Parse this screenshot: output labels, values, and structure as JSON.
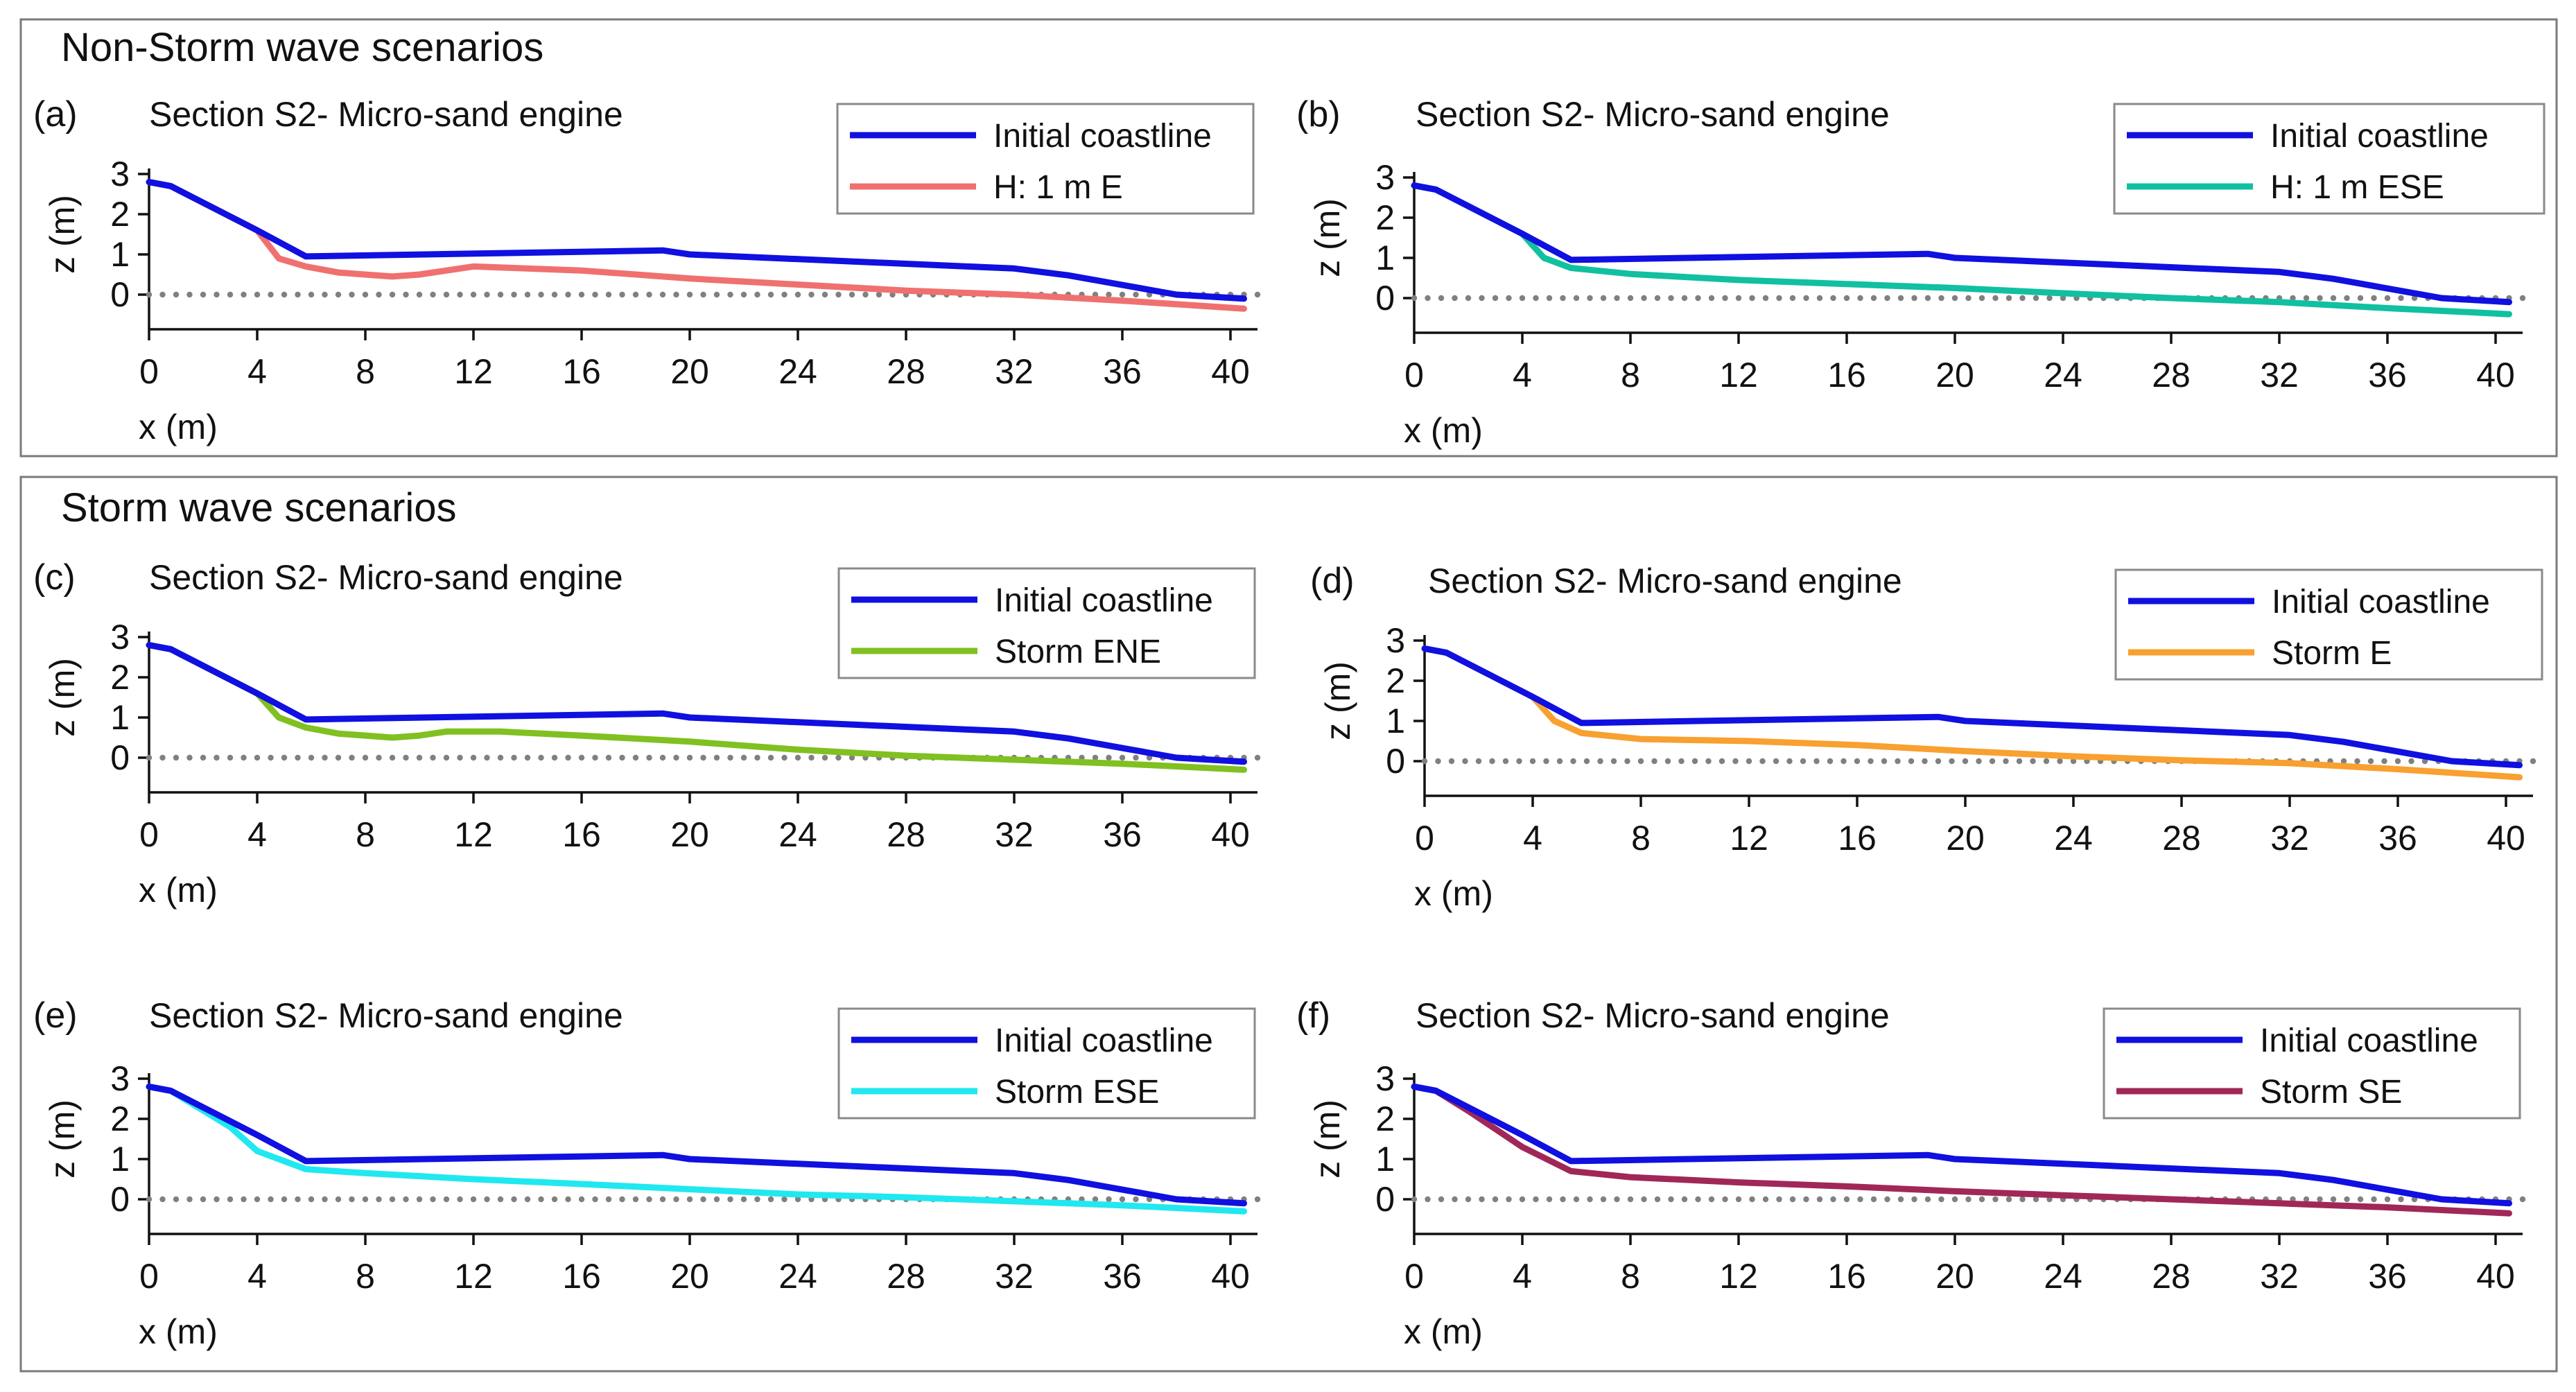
{
  "groups": [
    {
      "id": "non_storm",
      "title": "Non-Storm wave scenarios"
    },
    {
      "id": "storm",
      "title": "Storm wave scenarios"
    }
  ],
  "colors": {
    "initial": "#1010e0",
    "zero_marker": "#808080"
  },
  "chart_data": [
    {
      "type": "line",
      "group": "non_storm",
      "label": "(a)",
      "title": "Section S2- Micro-sand engine",
      "xlabel": "x (m)",
      "ylabel": "z (m)",
      "xlim": [
        0,
        41
      ],
      "ylim": [
        -0.8,
        3
      ],
      "xticks": [
        0,
        4,
        8,
        12,
        16,
        20,
        24,
        28,
        32,
        36,
        40
      ],
      "yticks": [
        0,
        1,
        2,
        3
      ],
      "series": [
        {
          "name": "Initial coastline",
          "color": "#1010e0",
          "x": [
            0,
            0.8,
            4,
            5.8,
            19,
            20,
            32,
            34,
            38,
            40.5
          ],
          "y": [
            2.8,
            2.7,
            1.6,
            0.95,
            1.1,
            1.0,
            0.65,
            0.48,
            0.0,
            -0.1
          ]
        },
        {
          "name": "H: 1 m E",
          "color": "#f07070",
          "x": [
            0,
            0.8,
            4,
            4.8,
            5.8,
            7,
            9,
            10,
            12,
            16,
            20,
            24,
            28,
            32,
            36,
            40.5
          ],
          "y": [
            2.8,
            2.7,
            1.6,
            0.9,
            0.7,
            0.55,
            0.45,
            0.5,
            0.7,
            0.6,
            0.4,
            0.25,
            0.1,
            0.0,
            -0.15,
            -0.35
          ]
        }
      ]
    },
    {
      "type": "line",
      "group": "non_storm",
      "label": "(b)",
      "title": "Section S2- Micro-sand engine",
      "xlabel": "x (m)",
      "ylabel": "z (m)",
      "xlim": [
        0,
        41
      ],
      "ylim": [
        -0.8,
        3
      ],
      "xticks": [
        0,
        4,
        8,
        12,
        16,
        20,
        24,
        28,
        32,
        36,
        40
      ],
      "yticks": [
        0,
        1,
        2,
        3
      ],
      "series": [
        {
          "name": "Initial coastline",
          "color": "#1010e0",
          "x": [
            0,
            0.8,
            4,
            5.8,
            19,
            20,
            32,
            34,
            38,
            40.5
          ],
          "y": [
            2.8,
            2.7,
            1.6,
            0.95,
            1.1,
            1.0,
            0.65,
            0.48,
            0.0,
            -0.1
          ]
        },
        {
          "name": "H: 1 m ESE",
          "color": "#10c0a0",
          "x": [
            0,
            0.8,
            4,
            4.8,
            5.8,
            8,
            12,
            16,
            20,
            24,
            28,
            32,
            36,
            40.5
          ],
          "y": [
            2.8,
            2.7,
            1.6,
            1.0,
            0.75,
            0.6,
            0.45,
            0.35,
            0.25,
            0.12,
            0.0,
            -0.1,
            -0.25,
            -0.4
          ]
        }
      ]
    },
    {
      "type": "line",
      "group": "storm",
      "label": "(c)",
      "title": "Section S2- Micro-sand engine",
      "xlabel": "x (m)",
      "ylabel": "z (m)",
      "xlim": [
        0,
        41
      ],
      "ylim": [
        -0.8,
        3
      ],
      "xticks": [
        0,
        4,
        8,
        12,
        16,
        20,
        24,
        28,
        32,
        36,
        40
      ],
      "yticks": [
        0,
        1,
        2,
        3
      ],
      "series": [
        {
          "name": "Initial coastline",
          "color": "#1010e0",
          "x": [
            0,
            0.8,
            4,
            5.8,
            19,
            20,
            32,
            34,
            38,
            40.5
          ],
          "y": [
            2.8,
            2.7,
            1.6,
            0.95,
            1.1,
            1.0,
            0.65,
            0.48,
            0.0,
            -0.1
          ]
        },
        {
          "name": "Storm ENE",
          "color": "#80c020",
          "x": [
            0,
            0.8,
            4,
            4.8,
            5.8,
            7,
            9,
            10,
            11,
            13,
            16,
            20,
            24,
            28,
            32,
            36,
            40.5
          ],
          "y": [
            2.8,
            2.7,
            1.6,
            1.0,
            0.75,
            0.6,
            0.5,
            0.55,
            0.65,
            0.65,
            0.55,
            0.4,
            0.2,
            0.05,
            -0.05,
            -0.15,
            -0.3
          ]
        }
      ]
    },
    {
      "type": "line",
      "group": "storm",
      "label": "(d)",
      "title": "Section S2- Micro-sand engine",
      "xlabel": "x (m)",
      "ylabel": "z (m)",
      "xlim": [
        0,
        41
      ],
      "ylim": [
        -0.8,
        3
      ],
      "xticks": [
        0,
        4,
        8,
        12,
        16,
        20,
        24,
        28,
        32,
        36,
        40
      ],
      "yticks": [
        0,
        1,
        2,
        3
      ],
      "series": [
        {
          "name": "Initial coastline",
          "color": "#1010e0",
          "x": [
            0,
            0.8,
            4,
            5.8,
            19,
            20,
            32,
            34,
            38,
            40.5
          ],
          "y": [
            2.8,
            2.7,
            1.6,
            0.95,
            1.1,
            1.0,
            0.65,
            0.48,
            0.0,
            -0.1
          ]
        },
        {
          "name": "Storm E",
          "color": "#f8a030",
          "x": [
            0,
            0.8,
            4,
            4.8,
            5.8,
            8,
            12,
            16,
            20,
            24,
            28,
            32,
            36,
            40.5
          ],
          "y": [
            2.8,
            2.7,
            1.6,
            1.0,
            0.7,
            0.55,
            0.5,
            0.4,
            0.25,
            0.12,
            0.02,
            -0.05,
            -0.2,
            -0.4
          ]
        }
      ]
    },
    {
      "type": "line",
      "group": "storm",
      "label": "(e)",
      "title": "Section S2- Micro-sand engine",
      "xlabel": "x (m)",
      "ylabel": "z (m)",
      "xlim": [
        0,
        41
      ],
      "ylim": [
        -0.8,
        3
      ],
      "xticks": [
        0,
        4,
        8,
        12,
        16,
        20,
        24,
        28,
        32,
        36,
        40
      ],
      "yticks": [
        0,
        1,
        2,
        3
      ],
      "series": [
        {
          "name": "Initial coastline",
          "color": "#1010e0",
          "x": [
            0,
            0.8,
            4,
            5.8,
            19,
            20,
            32,
            34,
            38,
            40.5
          ],
          "y": [
            2.8,
            2.7,
            1.6,
            0.95,
            1.1,
            1.0,
            0.65,
            0.48,
            0.0,
            -0.1
          ]
        },
        {
          "name": "Storm ESE",
          "color": "#20e8f0",
          "x": [
            0,
            0.8,
            3,
            4,
            5.8,
            8,
            12,
            16,
            20,
            24,
            28,
            32,
            36,
            40.5
          ],
          "y": [
            2.8,
            2.7,
            1.8,
            1.2,
            0.75,
            0.65,
            0.5,
            0.38,
            0.25,
            0.12,
            0.05,
            -0.05,
            -0.15,
            -0.3
          ]
        }
      ]
    },
    {
      "type": "line",
      "group": "storm",
      "label": "(f)",
      "title": "Section S2- Micro-sand engine",
      "xlabel": "x (m)",
      "ylabel": "z (m)",
      "xlim": [
        0,
        41
      ],
      "ylim": [
        -0.8,
        3
      ],
      "xticks": [
        0,
        4,
        8,
        12,
        16,
        20,
        24,
        28,
        32,
        36,
        40
      ],
      "yticks": [
        0,
        1,
        2,
        3
      ],
      "series": [
        {
          "name": "Initial coastline",
          "color": "#1010e0",
          "x": [
            0,
            0.8,
            4,
            5.8,
            19,
            20,
            32,
            34,
            38,
            40.5
          ],
          "y": [
            2.8,
            2.7,
            1.6,
            0.95,
            1.1,
            1.0,
            0.65,
            0.48,
            0.0,
            -0.1
          ]
        },
        {
          "name": "Storm SE",
          "color": "#a02858",
          "x": [
            0,
            0.8,
            2,
            4,
            5.8,
            8,
            12,
            16,
            20,
            24,
            28,
            32,
            36,
            40.5
          ],
          "y": [
            2.8,
            2.7,
            2.2,
            1.3,
            0.7,
            0.55,
            0.42,
            0.32,
            0.2,
            0.1,
            0.0,
            -0.1,
            -0.2,
            -0.35
          ]
        }
      ]
    }
  ]
}
